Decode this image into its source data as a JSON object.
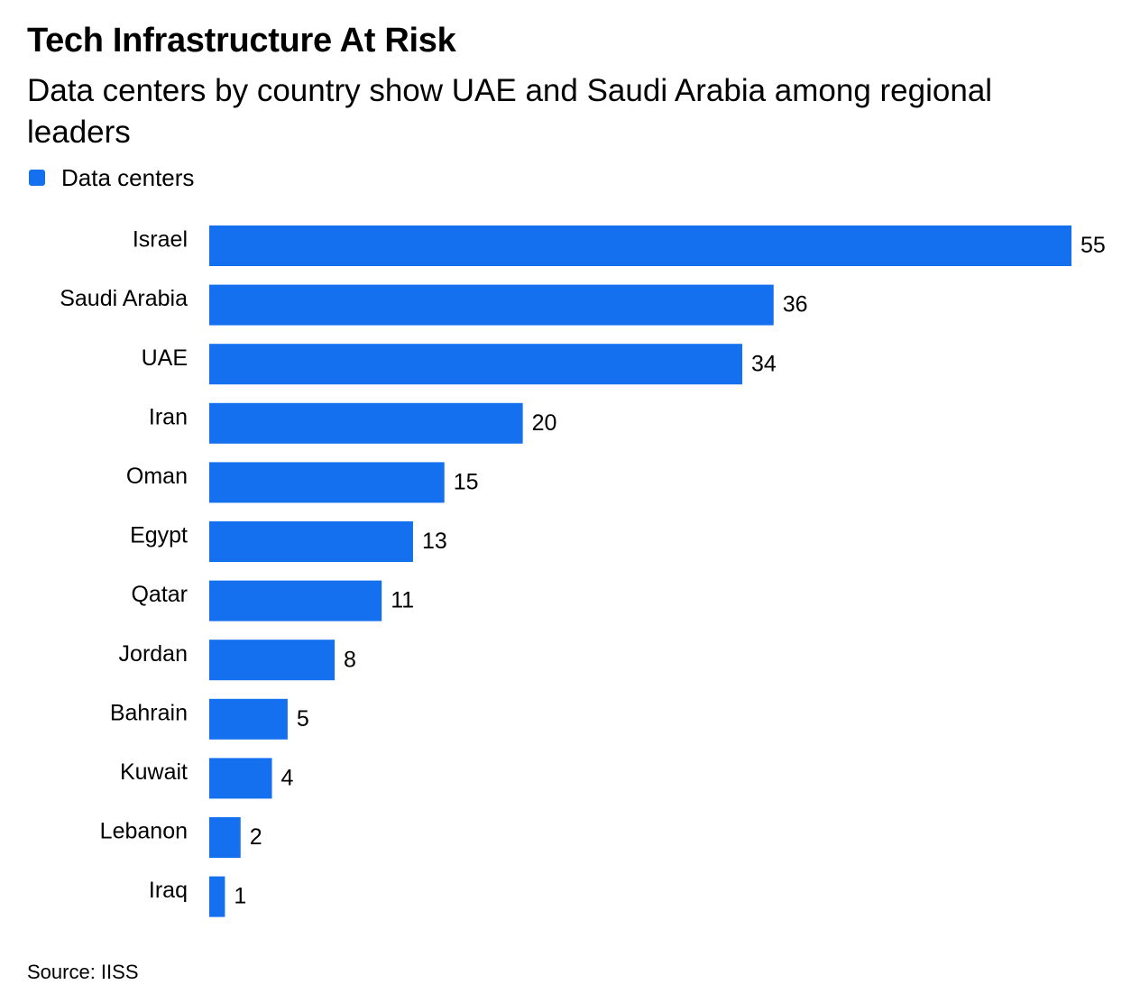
{
  "header": {
    "title": "Tech Infrastructure At Risk",
    "subtitle": "Data centers by country show UAE and Saudi Arabia among regional leaders"
  },
  "legend": {
    "label": "Data centers",
    "color": "#1570EF"
  },
  "source": {
    "text": "Source: IISS"
  },
  "chart_data": {
    "type": "bar",
    "orientation": "horizontal",
    "title": "Tech Infrastructure At Risk",
    "subtitle": "Data centers by country show UAE and Saudi Arabia among regional leaders",
    "categories": [
      "Israel",
      "Saudi Arabia",
      "UAE",
      "Iran",
      "Oman",
      "Egypt",
      "Qatar",
      "Jordan",
      "Bahrain",
      "Kuwait",
      "Lebanon",
      "Iraq"
    ],
    "series": [
      {
        "name": "Data centers",
        "values": [
          55,
          36,
          34,
          20,
          15,
          13,
          11,
          8,
          5,
          4,
          2,
          1
        ],
        "color": "#1570EF"
      }
    ],
    "xlim": [
      0,
      55
    ],
    "xlabel": "",
    "ylabel": "",
    "grid": false,
    "data_labels": true,
    "legend_position": "top-left"
  }
}
